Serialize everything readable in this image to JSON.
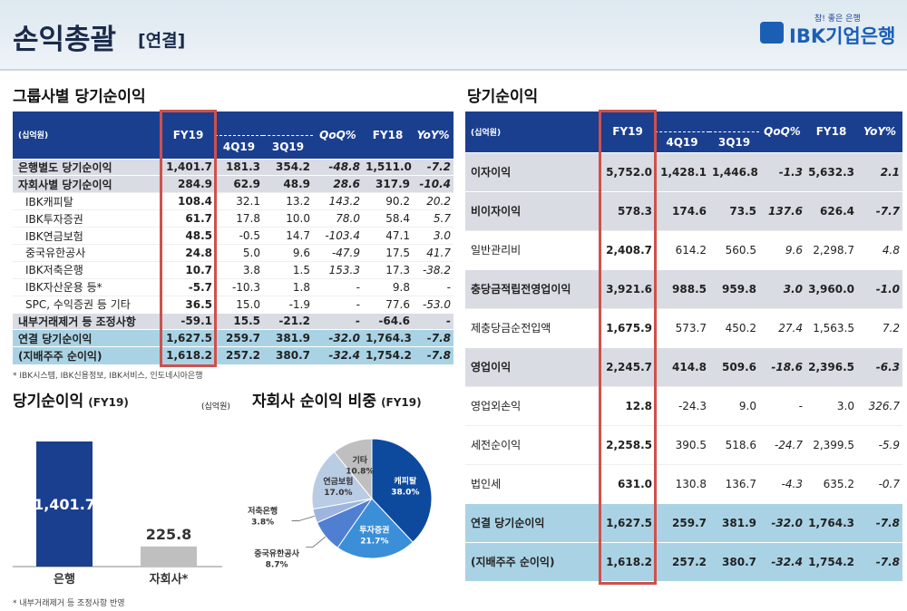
{
  "header": {
    "title": "손익총괄",
    "subtitle": "[연결]",
    "logo_tagline": "참! 좋은 은행",
    "logo": "IBK기업은행"
  },
  "left_table": {
    "title": "그룹사별 당기순이익",
    "unit": "(십억원)",
    "columns": [
      "FY19",
      "4Q19",
      "3Q19",
      "QoQ%",
      "FY18",
      "YoY%"
    ],
    "rows": [
      [
        "은행별도 당기순이익",
        "1,401.7",
        "181.3",
        "354.2",
        "-48.8",
        "1,511.0",
        "-7.2"
      ],
      [
        "자회사별 당기순이익",
        "284.9",
        "62.9",
        "48.9",
        "28.6",
        "317.9",
        "-10.4"
      ],
      [
        "IBK캐피탈",
        "108.4",
        "32.1",
        "13.2",
        "143.2",
        "90.2",
        "20.2"
      ],
      [
        "IBK투자증권",
        "61.7",
        "17.8",
        "10.0",
        "78.0",
        "58.4",
        "5.7"
      ],
      [
        "IBK연금보험",
        "48.5",
        "-0.5",
        "14.7",
        "-103.4",
        "47.1",
        "3.0"
      ],
      [
        "중국유한공사",
        "24.8",
        "5.0",
        "9.6",
        "-47.9",
        "17.5",
        "41.7"
      ],
      [
        "IBK저축은행",
        "10.7",
        "3.8",
        "1.5",
        "153.3",
        "17.3",
        "-38.2"
      ],
      [
        "IBK자산운용 등*",
        "-5.7",
        "-10.3",
        "1.8",
        "-",
        "9.8",
        "-"
      ],
      [
        "SPC, 수익증권 등 기타",
        "36.5",
        "15.0",
        "-1.9",
        "-",
        "77.6",
        "-53.0"
      ],
      [
        "내부거래제거 등 조정사항",
        "-59.1",
        "15.5",
        "-21.2",
        "-",
        "-64.6",
        "-"
      ],
      [
        "연결 당기순이익",
        "1,627.5",
        "259.7",
        "381.9",
        "-32.0",
        "1,764.3",
        "-7.8"
      ],
      [
        "(지배주주 순이익)",
        "1,618.2",
        "257.2",
        "380.7",
        "-32.4",
        "1,754.2",
        "-7.8"
      ]
    ],
    "footnote": "* IBK시스템, IBK신용정보, IBK서비스, 인도네시아은행"
  },
  "bar_chart": {
    "title": "당기순이익",
    "period": "(FY19)",
    "unit": "(십억원)",
    "categories": [
      "은행",
      "자회사*"
    ],
    "values": [
      1401.7,
      225.8
    ],
    "value_labels": [
      "1,401.7",
      "225.8"
    ],
    "colors": [
      "#1b3f8f",
      "#bfbfbf"
    ],
    "footnote": "* 내부거래제거 등 조정사항 반영"
  },
  "pie_chart": {
    "title": "자회사 순이익 비중",
    "period": "(FY19)",
    "categories": [
      "캐피탈",
      "투자증권",
      "중국유한공사",
      "저축은행",
      "연금보험",
      "기타"
    ],
    "values": [
      38.0,
      21.7,
      8.7,
      3.8,
      17.0,
      10.8
    ],
    "value_labels": [
      "38.0%",
      "21.7%",
      "8.7%",
      "3.8%",
      "17.0%",
      "10.8%"
    ],
    "colors": [
      "#0d4a9e",
      "#3a8fd8",
      "#4f7fd0",
      "#9db5de",
      "#b8cce4",
      "#bfbfbf"
    ]
  },
  "right_table": {
    "title": "당기순이익",
    "unit": "(십억원)",
    "columns": [
      "FY19",
      "4Q19",
      "3Q19",
      "QoQ%",
      "FY18",
      "YoY%"
    ],
    "rows": [
      [
        "이자이익",
        "5,752.0",
        "1,428.1",
        "1,446.8",
        "-1.3",
        "5,632.3",
        "2.1"
      ],
      [
        "비이자이익",
        "578.3",
        "174.6",
        "73.5",
        "137.6",
        "626.4",
        "-7.7"
      ],
      [
        "일반관리비",
        "2,408.7",
        "614.2",
        "560.5",
        "9.6",
        "2,298.7",
        "4.8"
      ],
      [
        "충당금적립전영업이익",
        "3,921.6",
        "988.5",
        "959.8",
        "3.0",
        "3,960.0",
        "-1.0"
      ],
      [
        "제충당금순전입액",
        "1,675.9",
        "573.7",
        "450.2",
        "27.4",
        "1,563.5",
        "7.2"
      ],
      [
        "영업이익",
        "2,245.7",
        "414.8",
        "509.6",
        "-18.6",
        "2,396.5",
        "-6.3"
      ],
      [
        "영업외손익",
        "12.8",
        "-24.3",
        "9.0",
        "-",
        "3.0",
        "326.7"
      ],
      [
        "세전순이익",
        "2,258.5",
        "390.5",
        "518.6",
        "-24.7",
        "2,399.5",
        "-5.9"
      ],
      [
        "법인세",
        "631.0",
        "130.8",
        "136.7",
        "-4.3",
        "635.2",
        "-0.7"
      ],
      [
        "연결 당기순이익",
        "1,627.5",
        "259.7",
        "381.9",
        "-32.0",
        "1,764.3",
        "-7.8"
      ],
      [
        "(지배주주 순이익)",
        "1,618.2",
        "257.2",
        "380.7",
        "-32.4",
        "1,754.2",
        "-7.8"
      ]
    ]
  }
}
